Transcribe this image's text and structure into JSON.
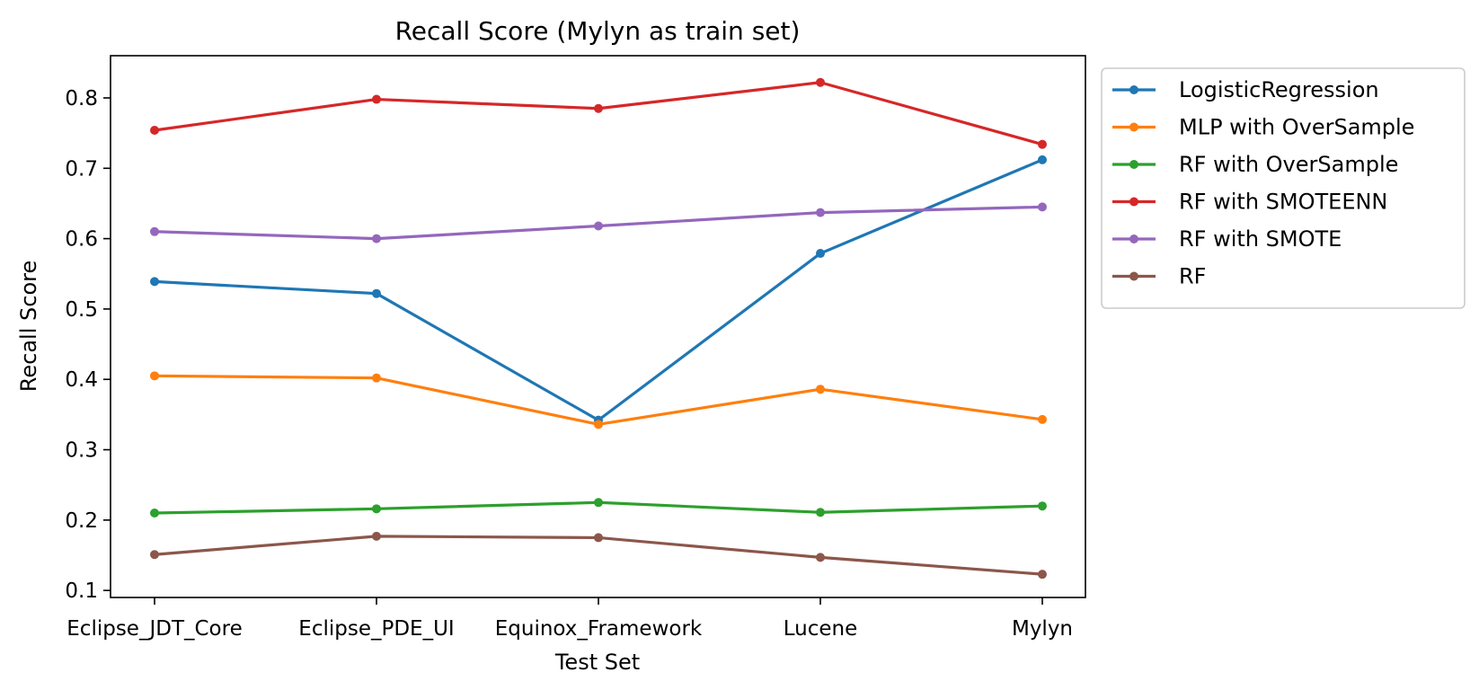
{
  "chart_data": {
    "type": "line",
    "title": "Recall Score (Mylyn as train set)",
    "xlabel": "Test Set",
    "ylabel": "Recall Score",
    "categories": [
      "Eclipse_JDT_Core",
      "Eclipse_PDE_UI",
      "Equinox_Framework",
      "Lucene",
      "Mylyn"
    ],
    "ylim": [
      0.09,
      0.86
    ],
    "yticks": [
      0.1,
      0.2,
      0.3,
      0.4,
      0.5,
      0.6,
      0.7,
      0.8
    ],
    "ytick_labels": [
      "0.1",
      "0.2",
      "0.3",
      "0.4",
      "0.5",
      "0.6",
      "0.7",
      "0.8"
    ],
    "grid": false,
    "legend_position": "outside-top-right",
    "marker": "circle",
    "series": [
      {
        "name": "LogisticRegression",
        "color": "#1f77b4",
        "values": [
          0.539,
          0.522,
          0.342,
          0.579,
          0.712
        ]
      },
      {
        "name": "MLP with OverSample",
        "color": "#ff7f0e",
        "values": [
          0.405,
          0.402,
          0.336,
          0.386,
          0.343
        ]
      },
      {
        "name": "RF with OverSample",
        "color": "#2ca02c",
        "values": [
          0.21,
          0.216,
          0.225,
          0.211,
          0.22
        ]
      },
      {
        "name": "RF with SMOTEENN",
        "color": "#d62728",
        "values": [
          0.754,
          0.798,
          0.785,
          0.822,
          0.734
        ]
      },
      {
        "name": "RF with SMOTE",
        "color": "#9467bd",
        "values": [
          0.61,
          0.6,
          0.618,
          0.637,
          0.645
        ]
      },
      {
        "name": "RF",
        "color": "#8c564b",
        "values": [
          0.151,
          0.177,
          0.175,
          0.147,
          0.123
        ]
      }
    ]
  }
}
